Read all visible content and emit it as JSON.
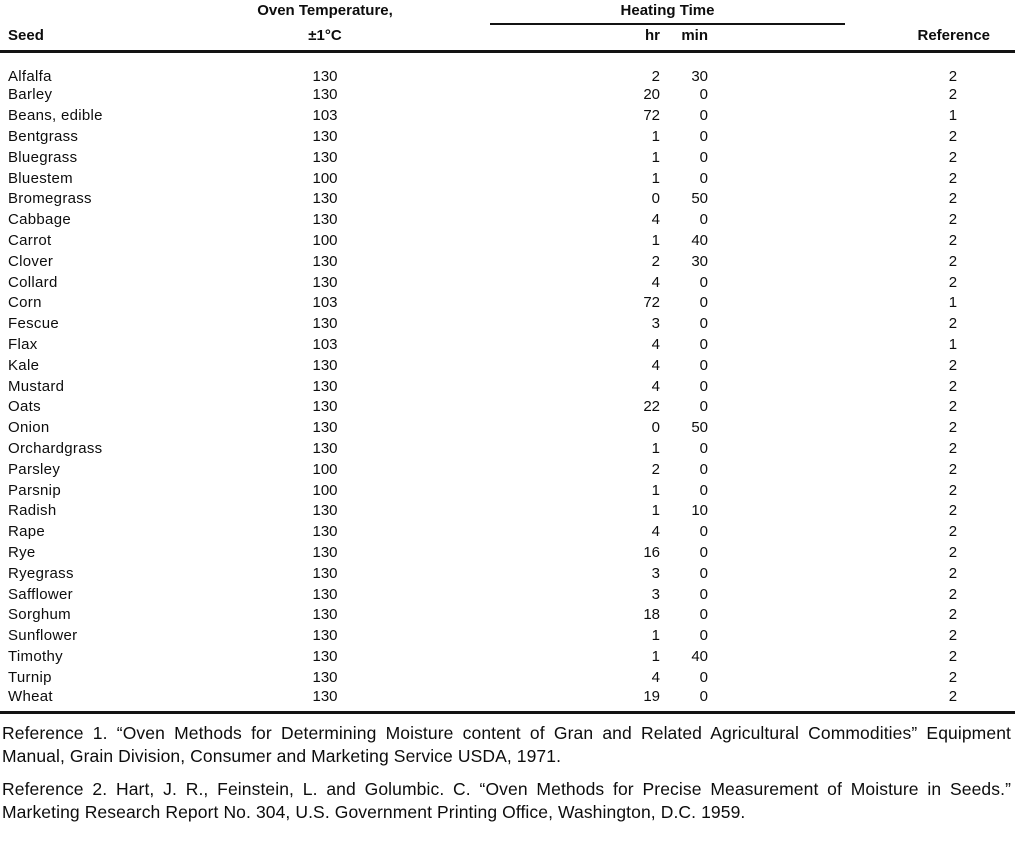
{
  "document": {
    "table": {
      "headers": {
        "seed": "Seed",
        "oven_temp_line1": "Oven Temperature,",
        "oven_temp_line2": "±1°C",
        "heating_time": "Heating Time",
        "hr": "hr",
        "min": "min",
        "reference": "Reference"
      },
      "rows": [
        {
          "seed": "Alfalfa",
          "temp": "130",
          "hr": "2",
          "min": "30",
          "ref": "2"
        },
        {
          "seed": "Barley",
          "temp": "130",
          "hr": "20",
          "min": "0",
          "ref": "2"
        },
        {
          "seed": "Beans, edible",
          "temp": "103",
          "hr": "72",
          "min": "0",
          "ref": "1"
        },
        {
          "seed": "Bentgrass",
          "temp": "130",
          "hr": "1",
          "min": "0",
          "ref": "2"
        },
        {
          "seed": "Bluegrass",
          "temp": "130",
          "hr": "1",
          "min": "0",
          "ref": "2"
        },
        {
          "seed": "Bluestem",
          "temp": "100",
          "hr": "1",
          "min": "0",
          "ref": "2"
        },
        {
          "seed": "Bromegrass",
          "temp": "130",
          "hr": "0",
          "min": "50",
          "ref": "2"
        },
        {
          "seed": "Cabbage",
          "temp": "130",
          "hr": "4",
          "min": "0",
          "ref": "2"
        },
        {
          "seed": "Carrot",
          "temp": "100",
          "hr": "1",
          "min": "40",
          "ref": "2"
        },
        {
          "seed": "Clover",
          "temp": "130",
          "hr": "2",
          "min": "30",
          "ref": "2"
        },
        {
          "seed": "Collard",
          "temp": "130",
          "hr": "4",
          "min": "0",
          "ref": "2"
        },
        {
          "seed": "Corn",
          "temp": "103",
          "hr": "72",
          "min": "0",
          "ref": "1"
        },
        {
          "seed": "Fescue",
          "temp": "130",
          "hr": "3",
          "min": "0",
          "ref": "2"
        },
        {
          "seed": "Flax",
          "temp": "103",
          "hr": "4",
          "min": "0",
          "ref": "1"
        },
        {
          "seed": "Kale",
          "temp": "130",
          "hr": "4",
          "min": "0",
          "ref": "2"
        },
        {
          "seed": "Mustard",
          "temp": "130",
          "hr": "4",
          "min": "0",
          "ref": "2"
        },
        {
          "seed": "Oats",
          "temp": "130",
          "hr": "22",
          "min": "0",
          "ref": "2"
        },
        {
          "seed": "Onion",
          "temp": "130",
          "hr": "0",
          "min": "50",
          "ref": "2"
        },
        {
          "seed": "Orchardgrass",
          "temp": "130",
          "hr": "1",
          "min": "0",
          "ref": "2"
        },
        {
          "seed": "Parsley",
          "temp": "100",
          "hr": "2",
          "min": "0",
          "ref": "2"
        },
        {
          "seed": "Parsnip",
          "temp": "100",
          "hr": "1",
          "min": "0",
          "ref": "2"
        },
        {
          "seed": "Radish",
          "temp": "130",
          "hr": "1",
          "min": "10",
          "ref": "2"
        },
        {
          "seed": "Rape",
          "temp": "130",
          "hr": "4",
          "min": "0",
          "ref": "2"
        },
        {
          "seed": "Rye",
          "temp": "130",
          "hr": "16",
          "min": "0",
          "ref": "2"
        },
        {
          "seed": "Ryegrass",
          "temp": "130",
          "hr": "3",
          "min": "0",
          "ref": "2"
        },
        {
          "seed": "Safflower",
          "temp": "130",
          "hr": "3",
          "min": "0",
          "ref": "2"
        },
        {
          "seed": "Sorghum",
          "temp": "130",
          "hr": "18",
          "min": "0",
          "ref": "2"
        },
        {
          "seed": "Sunflower",
          "temp": "130",
          "hr": "1",
          "min": "0",
          "ref": "2"
        },
        {
          "seed": "Timothy",
          "temp": "130",
          "hr": "1",
          "min": "40",
          "ref": "2"
        },
        {
          "seed": "Turnip",
          "temp": "130",
          "hr": "4",
          "min": "0",
          "ref": "2"
        },
        {
          "seed": "Wheat",
          "temp": "130",
          "hr": "19",
          "min": "0",
          "ref": "2"
        }
      ]
    },
    "footnotes": {
      "reference1": "Reference 1. “Oven Methods for Determining Moisture content of Gran and Related Agricultural Commodities” Equipment Manual, Grain Division, Consumer and Marketing Service USDA, 1971.",
      "reference2": "Reference 2. Hart, J. R., Feinstein, L. and Golumbic. C. “Oven Methods for Precise Measurement of Moisture in Seeds.” Marketing Research Report No. 304, U.S. Government Printing Office, Washington, D.C. 1959."
    }
  },
  "colors": {
    "text": "#0d0d0d",
    "background": "#ffffff",
    "rule": "#131313"
  }
}
